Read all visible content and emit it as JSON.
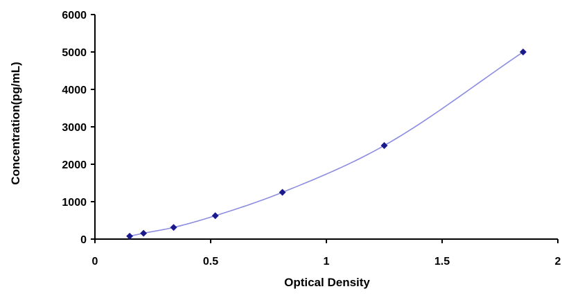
{
  "chart_data": {
    "type": "scatter",
    "title": "",
    "xlabel": "Optical Density",
    "ylabel": "Concentration(pg/mL)",
    "xlim": [
      0,
      2
    ],
    "ylim": [
      0,
      6000
    ],
    "x_ticks": [
      0,
      0.5,
      1,
      1.5,
      2
    ],
    "x_tick_labels": [
      "0",
      "0.5",
      "1",
      "1.5",
      "2"
    ],
    "y_ticks": [
      0,
      1000,
      2000,
      3000,
      4000,
      5000,
      6000
    ],
    "y_tick_labels": [
      "0",
      "1000",
      "2000",
      "3000",
      "4000",
      "5000",
      "6000"
    ],
    "grid": false,
    "legend": "none",
    "fit_curve": true,
    "series": [
      {
        "x": [
          0.15,
          0.21,
          0.34,
          0.52,
          0.81,
          1.25,
          1.85
        ],
        "y": [
          78,
          156,
          312,
          625,
          1250,
          2500,
          5000
        ],
        "marker_color": "#1a1a8c",
        "line_color": "#8c8ce0"
      }
    ]
  }
}
